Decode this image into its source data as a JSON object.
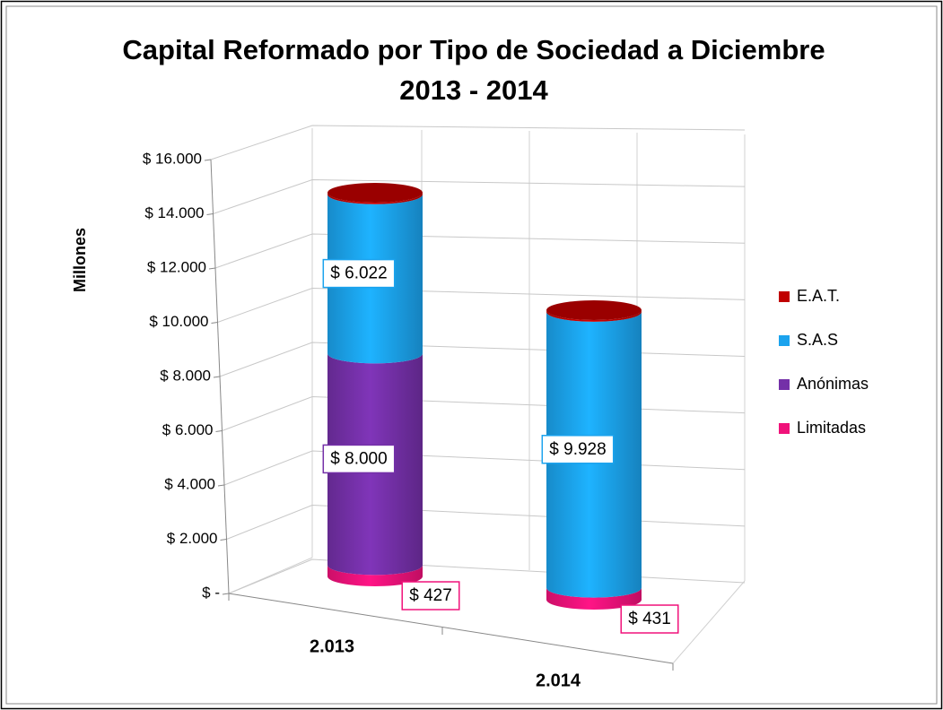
{
  "chart_data": {
    "type": "bar3d-cylinder-stacked",
    "title": [
      "Capital Reformado por Tipo de Sociedad a Diciembre",
      "2013 - 2014"
    ],
    "ylabel": "Millones",
    "categories": [
      "2.013",
      "2.014"
    ],
    "series": [
      {
        "name": "Limitadas",
        "color": "#f0127a",
        "values": [
          427,
          431
        ],
        "value_labels": [
          "$ 427",
          "$ 431"
        ]
      },
      {
        "name": "Anónimas",
        "color": "#7430a8",
        "values": [
          8000,
          0
        ],
        "value_labels": [
          "$ 8.000",
          null
        ]
      },
      {
        "name": "S.A.S",
        "color": "#1ba3ee",
        "values": [
          6022,
          9928
        ],
        "value_labels": [
          "$ 6.022",
          "$ 9.928"
        ]
      },
      {
        "name": "E.A.T.",
        "color": "#c00000",
        "values": [
          60,
          60
        ],
        "value_labels": [
          null,
          null
        ]
      }
    ],
    "ylim": [
      0,
      16000
    ],
    "yticks": [
      {
        "value": 0,
        "label": "$ -"
      },
      {
        "value": 2000,
        "label": "$ 2.000"
      },
      {
        "value": 4000,
        "label": "$ 4.000"
      },
      {
        "value": 6000,
        "label": "$ 6.000"
      },
      {
        "value": 8000,
        "label": "$ 8.000"
      },
      {
        "value": 10000,
        "label": "$ 10.000"
      },
      {
        "value": 12000,
        "label": "$ 12.000"
      },
      {
        "value": 14000,
        "label": "$ 14.000"
      },
      {
        "value": 16000,
        "label": "$ 16.000"
      }
    ],
    "grid": true,
    "legend": "right"
  }
}
